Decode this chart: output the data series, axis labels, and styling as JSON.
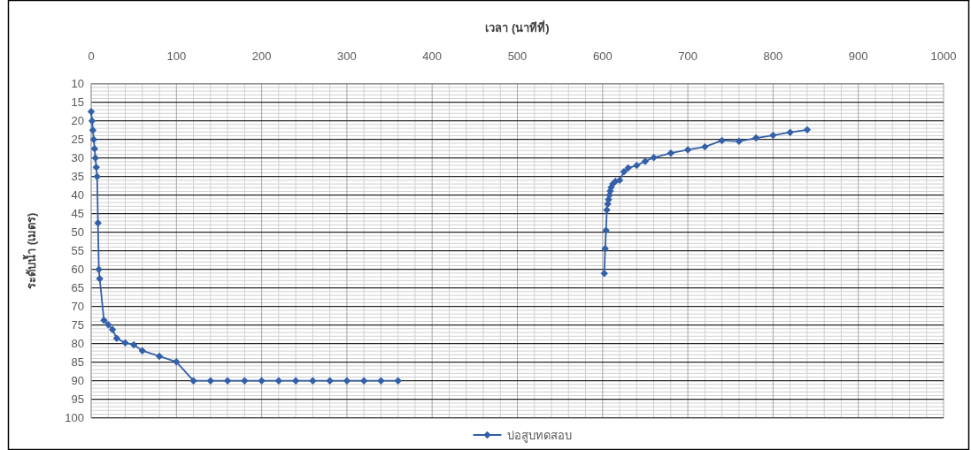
{
  "chart_data": {
    "type": "line",
    "xlabel": "เวลา (นาทีที่)",
    "ylabel": "ระดับน้ำ (เมตร)",
    "xlim": [
      0,
      1000
    ],
    "xticks": [
      0,
      100,
      200,
      300,
      400,
      500,
      600,
      700,
      800,
      900,
      1000
    ],
    "ylim": [
      100,
      10
    ],
    "yticks": [
      10,
      15,
      20,
      25,
      30,
      35,
      40,
      45,
      50,
      55,
      60,
      65,
      70,
      75,
      80,
      85,
      90,
      95,
      100
    ],
    "grid": true,
    "legend": "bottom",
    "marker": "diamond",
    "line_style": "solid",
    "series": [
      {
        "name": "บ่อสูบทดสอบ",
        "color": "#3360a9",
        "x": [
          0,
          1,
          2,
          3,
          4,
          5,
          6,
          7,
          8,
          9,
          10,
          15,
          20,
          25,
          30,
          40,
          50,
          60,
          80,
          100,
          120,
          140,
          160,
          180,
          200,
          220,
          240,
          260,
          280,
          300,
          320,
          340,
          360
        ],
        "values": [
          17.5,
          20,
          22.5,
          25,
          27.5,
          30,
          32.5,
          35,
          47.5,
          60,
          62.5,
          73.7,
          74.9,
          76.2,
          78.6,
          79.8,
          80.3,
          81.9,
          83.4,
          84.9,
          90,
          90,
          90,
          90,
          90,
          90,
          90,
          90,
          90,
          90,
          90,
          90,
          90
        ]
      },
      {
        "color": "#3360a9",
        "x": [
          602,
          603,
          604,
          605,
          606,
          607,
          608,
          609,
          610,
          612,
          615,
          620,
          625,
          630,
          640,
          650,
          660,
          680,
          700,
          720,
          740,
          760,
          780,
          800,
          820,
          840
        ],
        "values": [
          61.1,
          54.4,
          49.5,
          44,
          42.4,
          41.2,
          40,
          38.9,
          37.9,
          37,
          36.3,
          36,
          33.7,
          32.7,
          32,
          30.9,
          29.9,
          28.7,
          27.8,
          27,
          25.3,
          25.5,
          24.6,
          23.9,
          23.1,
          22.4
        ]
      }
    ]
  }
}
